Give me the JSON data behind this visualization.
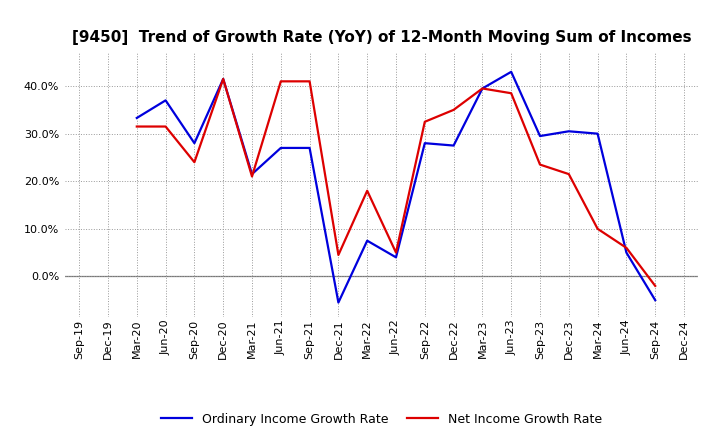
{
  "title": "[9450]  Trend of Growth Rate (YoY) of 12-Month Moving Sum of Incomes",
  "x_labels": [
    "Sep-19",
    "Dec-19",
    "Mar-20",
    "Jun-20",
    "Sep-20",
    "Dec-20",
    "Mar-21",
    "Jun-21",
    "Sep-21",
    "Dec-21",
    "Mar-22",
    "Jun-22",
    "Sep-22",
    "Dec-22",
    "Mar-23",
    "Jun-23",
    "Sep-23",
    "Dec-23",
    "Mar-24",
    "Jun-24",
    "Sep-24",
    "Dec-24"
  ],
  "ordinary_income": [
    null,
    null,
    0.333,
    0.37,
    0.28,
    0.415,
    0.215,
    0.27,
    0.27,
    -0.055,
    0.075,
    0.04,
    0.28,
    0.275,
    0.395,
    0.43,
    0.295,
    0.305,
    0.3,
    0.05,
    -0.05,
    null
  ],
  "net_income": [
    null,
    null,
    0.315,
    0.315,
    0.24,
    0.415,
    0.21,
    0.41,
    0.41,
    0.045,
    0.18,
    0.05,
    0.325,
    0.35,
    0.395,
    0.385,
    0.235,
    0.215,
    0.1,
    0.06,
    -0.02,
    null
  ],
  "ordinary_color": "#0000dd",
  "net_color": "#dd0000",
  "ylim": [
    -0.085,
    0.47
  ],
  "yticks": [
    0.0,
    0.1,
    0.2,
    0.3,
    0.4
  ],
  "background_color": "#ffffff",
  "grid_color": "#999999",
  "legend_ordinary": "Ordinary Income Growth Rate",
  "legend_net": "Net Income Growth Rate",
  "title_fontsize": 11,
  "tick_fontsize": 8,
  "legend_fontsize": 9
}
